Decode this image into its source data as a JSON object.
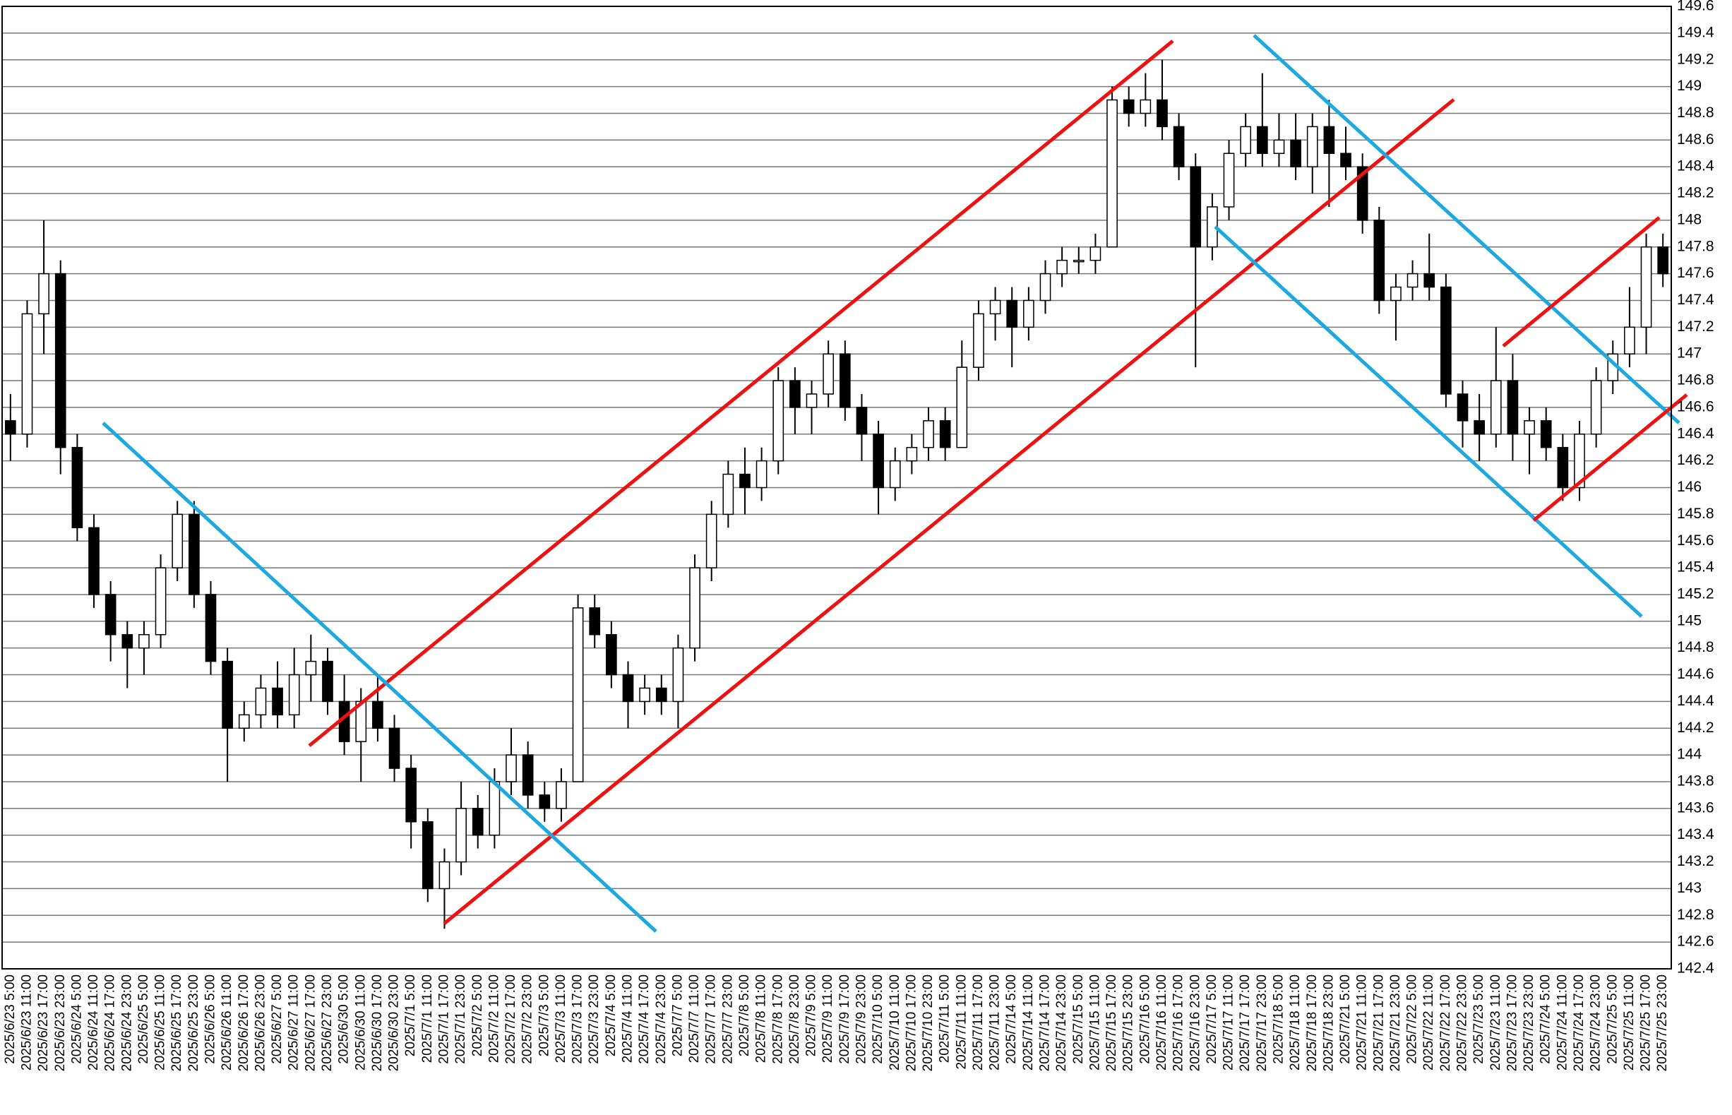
{
  "chart_data": {
    "type": "candlestick",
    "categories": [
      "2025/6/23 5:00",
      "2025/6/23 11:00",
      "2025/6/23 17:00",
      "2025/6/23 23:00",
      "2025/6/24 5:00",
      "2025/6/24 11:00",
      "2025/6/24 17:00",
      "2025/6/24 23:00",
      "2025/6/25 5:00",
      "2025/6/25 11:00",
      "2025/6/25 17:00",
      "2025/6/25 23:00",
      "2025/6/26 5:00",
      "2025/6/26 11:00",
      "2025/6/26 17:00",
      "2025/6/26 23:00",
      "2025/6/27 5:00",
      "2025/6/27 11:00",
      "2025/6/27 17:00",
      "2025/6/27 23:00",
      "2025/6/30 5:00",
      "2025/6/30 11:00",
      "2025/6/30 17:00",
      "2025/6/30 23:00",
      "2025/7/1 5:00",
      "2025/7/1 11:00",
      "2025/7/1 17:00",
      "2025/7/1 23:00",
      "2025/7/2 5:00",
      "2025/7/2 11:00",
      "2025/7/2 17:00",
      "2025/7/2 23:00",
      "2025/7/3 5:00",
      "2025/7/3 11:00",
      "2025/7/3 17:00",
      "2025/7/3 23:00",
      "2025/7/4 5:00",
      "2025/7/4 11:00",
      "2025/7/4 17:00",
      "2025/7/4 23:00",
      "2025/7/7 5:00",
      "2025/7/7 11:00",
      "2025/7/7 17:00",
      "2025/7/7 23:00",
      "2025/7/8 5:00",
      "2025/7/8 11:00",
      "2025/7/8 17:00",
      "2025/7/8 23:00",
      "2025/7/9 5:00",
      "2025/7/9 11:00",
      "2025/7/9 17:00",
      "2025/7/9 23:00",
      "2025/7/10 5:00",
      "2025/7/10 11:00",
      "2025/7/10 17:00",
      "2025/7/10 23:00",
      "2025/7/11 5:00",
      "2025/7/11 11:00",
      "2025/7/11 17:00",
      "2025/7/11 23:00",
      "2025/7/14 5:00",
      "2025/7/14 11:00",
      "2025/7/14 17:00",
      "2025/7/14 23:00",
      "2025/7/15 5:00",
      "2025/7/15 11:00",
      "2025/7/15 17:00",
      "2025/7/15 23:00",
      "2025/7/16 5:00",
      "2025/7/16 11:00",
      "2025/7/16 17:00",
      "2025/7/16 23:00",
      "2025/7/17 5:00",
      "2025/7/17 11:00",
      "2025/7/17 17:00",
      "2025/7/17 23:00",
      "2025/7/18 5:00",
      "2025/7/18 11:00",
      "2025/7/18 17:00",
      "2025/7/18 23:00",
      "2025/7/21 5:00",
      "2025/7/21 11:00",
      "2025/7/21 17:00",
      "2025/7/21 23:00",
      "2025/7/22 5:00",
      "2025/7/22 11:00",
      "2025/7/22 17:00",
      "2025/7/22 23:00",
      "2025/7/23 5:00",
      "2025/7/23 11:00",
      "2025/7/23 17:00",
      "2025/7/23 23:00",
      "2025/7/24 5:00",
      "2025/7/24 11:00",
      "2025/7/24 17:00",
      "2025/7/24 23:00",
      "2025/7/25 5:00",
      "2025/7/25 11:00",
      "2025/7/25 17:00",
      "2025/7/25 23:00"
    ],
    "open": [
      146.5,
      146.4,
      147.3,
      147.6,
      146.3,
      145.7,
      145.2,
      144.9,
      144.8,
      144.9,
      145.4,
      145.8,
      145.2,
      144.7,
      144.2,
      144.3,
      144.5,
      144.3,
      144.6,
      144.7,
      144.4,
      144.1,
      144.4,
      144.2,
      143.9,
      143.5,
      143.0,
      143.2,
      143.6,
      143.4,
      143.8,
      144.0,
      143.7,
      143.6,
      143.8,
      145.1,
      144.9,
      144.6,
      144.4,
      144.5,
      144.4,
      144.8,
      145.4,
      145.8,
      146.1,
      146.0,
      146.2,
      146.8,
      146.6,
      146.7,
      147.0,
      146.6,
      146.4,
      146.0,
      146.2,
      146.3,
      146.5,
      146.3,
      146.9,
      147.3,
      147.4,
      147.2,
      147.4,
      147.6,
      147.7,
      147.7,
      147.8,
      148.9,
      148.8,
      148.9,
      148.7,
      148.4,
      147.8,
      148.1,
      148.5,
      148.7,
      148.5,
      148.6,
      148.4,
      148.7,
      148.5,
      148.4,
      148.0,
      147.4,
      147.5,
      147.6,
      147.5,
      146.7,
      146.5,
      146.4,
      146.8,
      146.4,
      146.5,
      146.3,
      146.0,
      146.4,
      146.8,
      147.0,
      147.2,
      147.8
    ],
    "high": [
      146.7,
      147.4,
      148.0,
      147.7,
      146.4,
      145.8,
      145.3,
      145.0,
      145.0,
      145.5,
      145.9,
      145.9,
      145.3,
      144.8,
      144.4,
      144.6,
      144.7,
      144.8,
      144.9,
      144.8,
      144.6,
      144.5,
      144.6,
      144.3,
      144.0,
      143.6,
      143.3,
      143.8,
      143.7,
      143.9,
      144.2,
      144.1,
      143.8,
      143.9,
      145.2,
      145.2,
      145.0,
      144.7,
      144.6,
      144.6,
      144.9,
      145.5,
      145.9,
      146.2,
      146.3,
      146.3,
      146.9,
      146.9,
      146.8,
      147.1,
      147.1,
      146.7,
      146.5,
      146.3,
      146.4,
      146.6,
      146.6,
      147.1,
      147.4,
      147.5,
      147.5,
      147.5,
      147.7,
      147.8,
      147.8,
      147.9,
      149.0,
      149.0,
      149.1,
      149.2,
      148.8,
      148.5,
      148.2,
      148.6,
      148.8,
      149.1,
      148.8,
      148.8,
      148.8,
      148.9,
      148.7,
      148.5,
      148.1,
      147.6,
      147.7,
      147.9,
      147.6,
      146.8,
      146.7,
      147.2,
      147.0,
      146.6,
      146.6,
      146.4,
      146.5,
      146.9,
      147.1,
      147.5,
      147.9,
      147.9
    ],
    "low": [
      146.2,
      146.3,
      147.0,
      146.1,
      145.6,
      145.1,
      144.7,
      144.5,
      144.6,
      144.8,
      145.3,
      145.1,
      144.6,
      143.8,
      144.1,
      144.2,
      144.2,
      144.2,
      144.4,
      144.3,
      144.0,
      143.8,
      144.1,
      143.8,
      143.3,
      142.9,
      142.7,
      143.1,
      143.3,
      143.3,
      143.7,
      143.6,
      143.5,
      143.5,
      143.8,
      144.8,
      144.5,
      144.2,
      144.3,
      144.3,
      144.2,
      144.7,
      145.3,
      145.7,
      145.8,
      145.9,
      146.1,
      146.4,
      146.4,
      146.6,
      146.5,
      146.2,
      145.8,
      145.9,
      146.1,
      146.2,
      146.2,
      146.3,
      146.8,
      147.1,
      146.9,
      147.1,
      147.3,
      147.5,
      147.6,
      147.6,
      147.8,
      148.7,
      148.7,
      148.6,
      148.3,
      146.9,
      147.7,
      148.0,
      148.4,
      148.4,
      148.4,
      148.3,
      148.2,
      148.1,
      148.3,
      147.9,
      147.3,
      147.1,
      147.4,
      147.4,
      146.6,
      146.3,
      146.2,
      146.3,
      146.2,
      146.1,
      146.2,
      145.9,
      145.9,
      146.3,
      146.7,
      146.9,
      147.0,
      147.5
    ],
    "close": [
      146.4,
      147.3,
      147.6,
      146.3,
      145.7,
      145.2,
      144.9,
      144.8,
      144.9,
      145.4,
      145.8,
      145.2,
      144.7,
      144.2,
      144.3,
      144.5,
      144.3,
      144.6,
      144.7,
      144.4,
      144.1,
      144.4,
      144.2,
      143.9,
      143.5,
      143.0,
      143.2,
      143.6,
      143.4,
      143.8,
      144.0,
      143.7,
      143.6,
      143.8,
      145.1,
      144.9,
      144.6,
      144.4,
      144.5,
      144.4,
      144.8,
      145.4,
      145.8,
      146.1,
      146.0,
      146.2,
      146.8,
      146.6,
      146.7,
      147.0,
      146.6,
      146.4,
      146.0,
      146.2,
      146.3,
      146.5,
      146.3,
      146.9,
      147.3,
      147.4,
      147.2,
      147.4,
      147.6,
      147.7,
      147.7,
      147.8,
      148.9,
      148.8,
      148.9,
      148.7,
      148.4,
      147.8,
      148.1,
      148.5,
      148.7,
      148.5,
      148.6,
      148.4,
      148.7,
      148.5,
      148.4,
      148.0,
      147.4,
      147.5,
      147.6,
      147.5,
      146.7,
      146.5,
      146.4,
      146.8,
      146.4,
      146.5,
      146.3,
      146.0,
      146.4,
      146.8,
      147.0,
      147.2,
      147.8,
      147.6
    ],
    "up_color": "#ffffff",
    "down_color": "#000000",
    "ylim": [
      142.4,
      149.6
    ],
    "yticks": [
      142.4,
      142.6,
      142.8,
      143,
      143.2,
      143.4,
      143.6,
      143.8,
      144,
      144.2,
      144.4,
      144.6,
      144.8,
      145,
      145.2,
      145.4,
      145.6,
      145.8,
      146,
      146.2,
      146.4,
      146.6,
      146.8,
      147,
      147.2,
      147.4,
      147.6,
      147.8,
      148,
      148.2,
      148.4,
      148.6,
      148.8,
      149,
      149.2,
      149.4,
      149.6
    ],
    "grid": true
  }
}
